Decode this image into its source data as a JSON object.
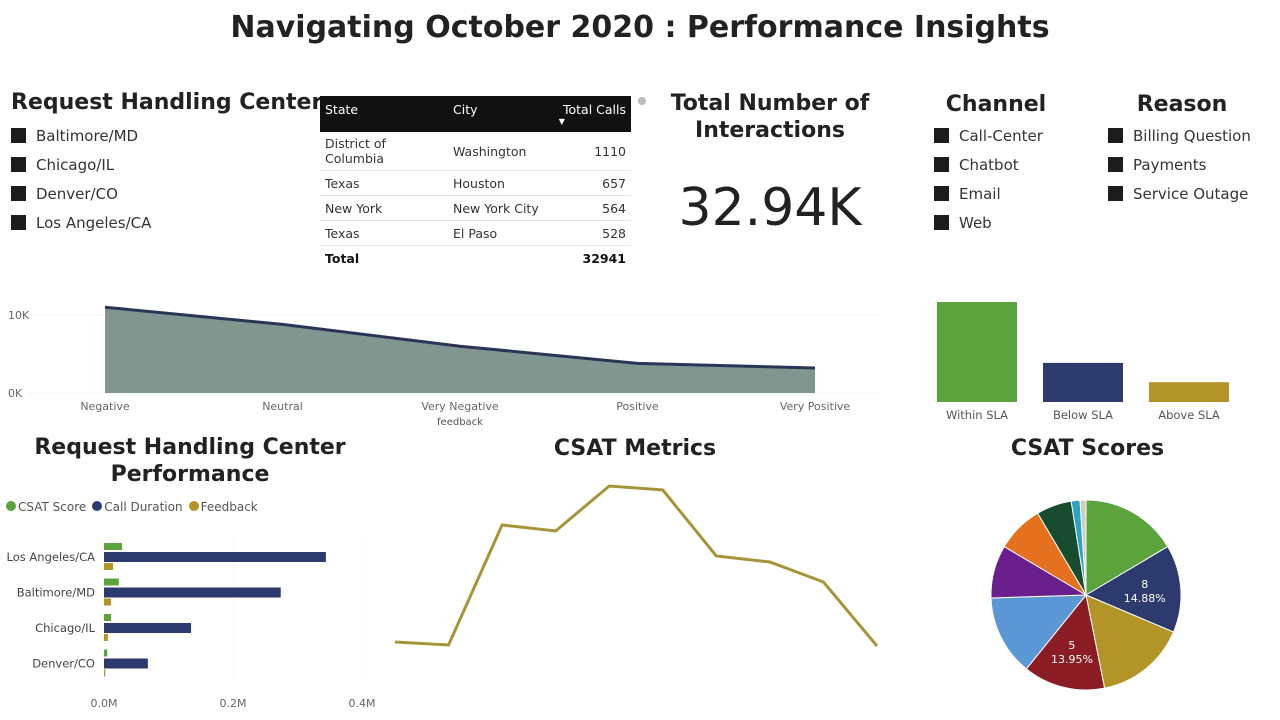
{
  "title": "Navigating October 2020 : Performance Insights",
  "centers": {
    "heading": "Request Handling Centers",
    "items": [
      "Baltimore/MD",
      "Chicago/IL",
      "Denver/CO",
      "Los Angeles/CA"
    ]
  },
  "table": {
    "headers": [
      "State",
      "City",
      "Total Calls"
    ],
    "rows": [
      [
        "District of Columbia",
        "Washington",
        "1110"
      ],
      [
        "Texas",
        "Houston",
        "657"
      ],
      [
        "New York",
        "New York City",
        "564"
      ],
      [
        "Texas",
        "El Paso",
        "528"
      ]
    ],
    "total_label": "Total",
    "total_value": "32941"
  },
  "kpi": {
    "heading": "Total Number of Interactions",
    "value": "32.94K"
  },
  "channel": {
    "heading": "Channel",
    "items": [
      "Call-Center",
      "Chatbot",
      "Email",
      "Web"
    ]
  },
  "reason": {
    "heading": "Reason",
    "items": [
      "Billing Question",
      "Payments",
      "Service Outage"
    ]
  },
  "chart_data": [
    {
      "type": "area",
      "name": "feedback",
      "xlabel": "feedback",
      "categories": [
        "Negative",
        "Neutral",
        "Very Negative",
        "Positive",
        "Very Positive"
      ],
      "values": [
        11000,
        8800,
        6000,
        3800,
        3200
      ],
      "yticks": [
        "0K",
        "10K"
      ],
      "ylim": [
        0,
        11500
      ],
      "fill": "#80968f",
      "line": "#2a3558"
    },
    {
      "type": "bar",
      "name": "sla",
      "categories": [
        "Within SLA",
        "Below SLA",
        "Above SLA"
      ],
      "values": [
        20700,
        8100,
        4100
      ],
      "colors": [
        "#5ba33b",
        "#2c3a6e",
        "#b39426"
      ]
    },
    {
      "type": "bar",
      "name": "center-performance",
      "title": "Request Handling Center Performance",
      "categories": [
        "Los Angeles/CA",
        "Baltimore/MD",
        "Chicago/IL",
        "Denver/CO"
      ],
      "series": [
        {
          "name": "CSAT Score",
          "color": "#5ba33b",
          "values": [
            0.028,
            0.023,
            0.011,
            0.005
          ]
        },
        {
          "name": "Call Duration",
          "color": "#2c3a6e",
          "values": [
            0.344,
            0.274,
            0.135,
            0.068
          ]
        },
        {
          "name": "Feedback",
          "color": "#b39426",
          "values": [
            0.014,
            0.011,
            0.006,
            0.002
          ]
        }
      ],
      "xticks": [
        "0.0M",
        "0.2M",
        "0.4M"
      ],
      "xlim": [
        0,
        0.4
      ]
    },
    {
      "type": "line",
      "name": "csat-metrics",
      "title": "CSAT Metrics",
      "values": [
        18,
        15,
        135,
        129,
        174,
        170,
        104,
        98,
        78,
        14
      ],
      "color": "#a89438"
    },
    {
      "type": "pie",
      "name": "csat-scores",
      "title": "CSAT Scores",
      "slices": [
        {
          "value": 16.5,
          "color": "#5ba33b"
        },
        {
          "value": 14.88,
          "color": "#2c3a6e",
          "label": "8",
          "pct": "14.88%"
        },
        {
          "value": 15.5,
          "color": "#b39426"
        },
        {
          "value": 13.95,
          "color": "#8b1c24",
          "label": "5",
          "pct": "13.95%"
        },
        {
          "value": 13.7,
          "color": "#5b97d4"
        },
        {
          "value": 9,
          "color": "#6a1f8c"
        },
        {
          "value": 8,
          "color": "#e5711e"
        },
        {
          "value": 6,
          "color": "#174c2e"
        },
        {
          "value": 1.5,
          "color": "#2ba3c4"
        },
        {
          "value": 1,
          "color": "#cccccc"
        }
      ]
    }
  ]
}
